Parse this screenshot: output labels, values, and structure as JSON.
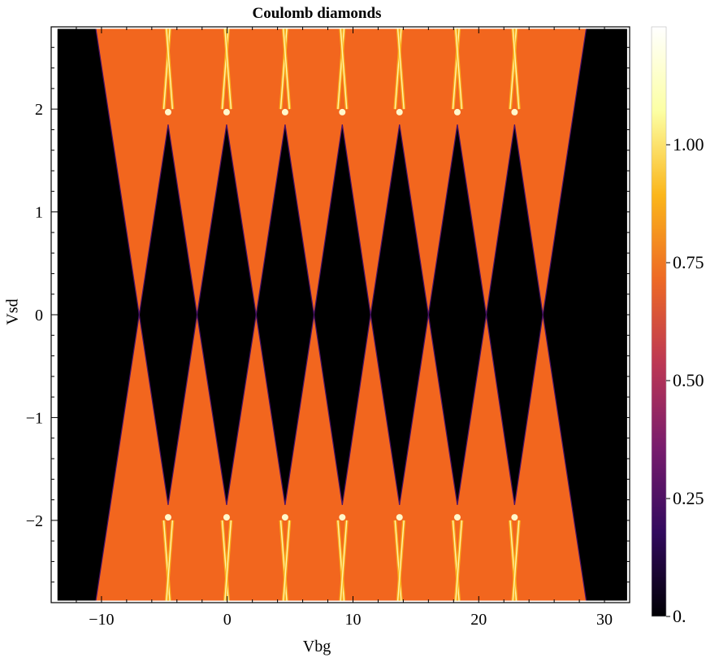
{
  "chart_data": {
    "type": "heatmap",
    "title": "Coulomb diamonds",
    "xlabel": "Vbg",
    "ylabel": "Vsd",
    "xlim": [
      -14,
      32
    ],
    "ylim": [
      -2.8,
      2.8
    ],
    "x_ticks": [
      {
        "v": -10,
        "label": "−10"
      },
      {
        "v": 0,
        "label": "0"
      },
      {
        "v": 10,
        "label": "10"
      },
      {
        "v": 20,
        "label": "20"
      },
      {
        "v": 30,
        "label": "30"
      }
    ],
    "y_ticks": [
      {
        "v": -2,
        "label": "−2"
      },
      {
        "v": -1,
        "label": "−1"
      },
      {
        "v": 0,
        "label": "0"
      },
      {
        "v": 1,
        "label": "1"
      },
      {
        "v": 2,
        "label": "2"
      }
    ],
    "data_extent": {
      "x": [
        -13.5,
        31.8
      ],
      "y": [
        -2.78,
        2.78
      ]
    },
    "charge_degeneracy_points_vbg": [
      -7.0,
      -2.4,
      2.3,
      6.9,
      11.4,
      16.0,
      20.6,
      25.1
    ],
    "diamond_half_height_vsd": 1.85,
    "conducting_level": 0.75,
    "colorbar": {
      "range": [
        0,
        1.25
      ],
      "ticks": [
        {
          "v": 0,
          "label": "0."
        },
        {
          "v": 0.25,
          "label": "0.25"
        },
        {
          "v": 0.5,
          "label": "0.50"
        },
        {
          "v": 0.75,
          "label": "0.75"
        },
        {
          "v": 1.0,
          "label": "1.00"
        }
      ],
      "colormap": [
        "#000004",
        "#320a5e",
        "#781c6d",
        "#bc3754",
        "#ed6925",
        "#fbb61a",
        "#fcffa4",
        "#ffffff"
      ]
    }
  }
}
